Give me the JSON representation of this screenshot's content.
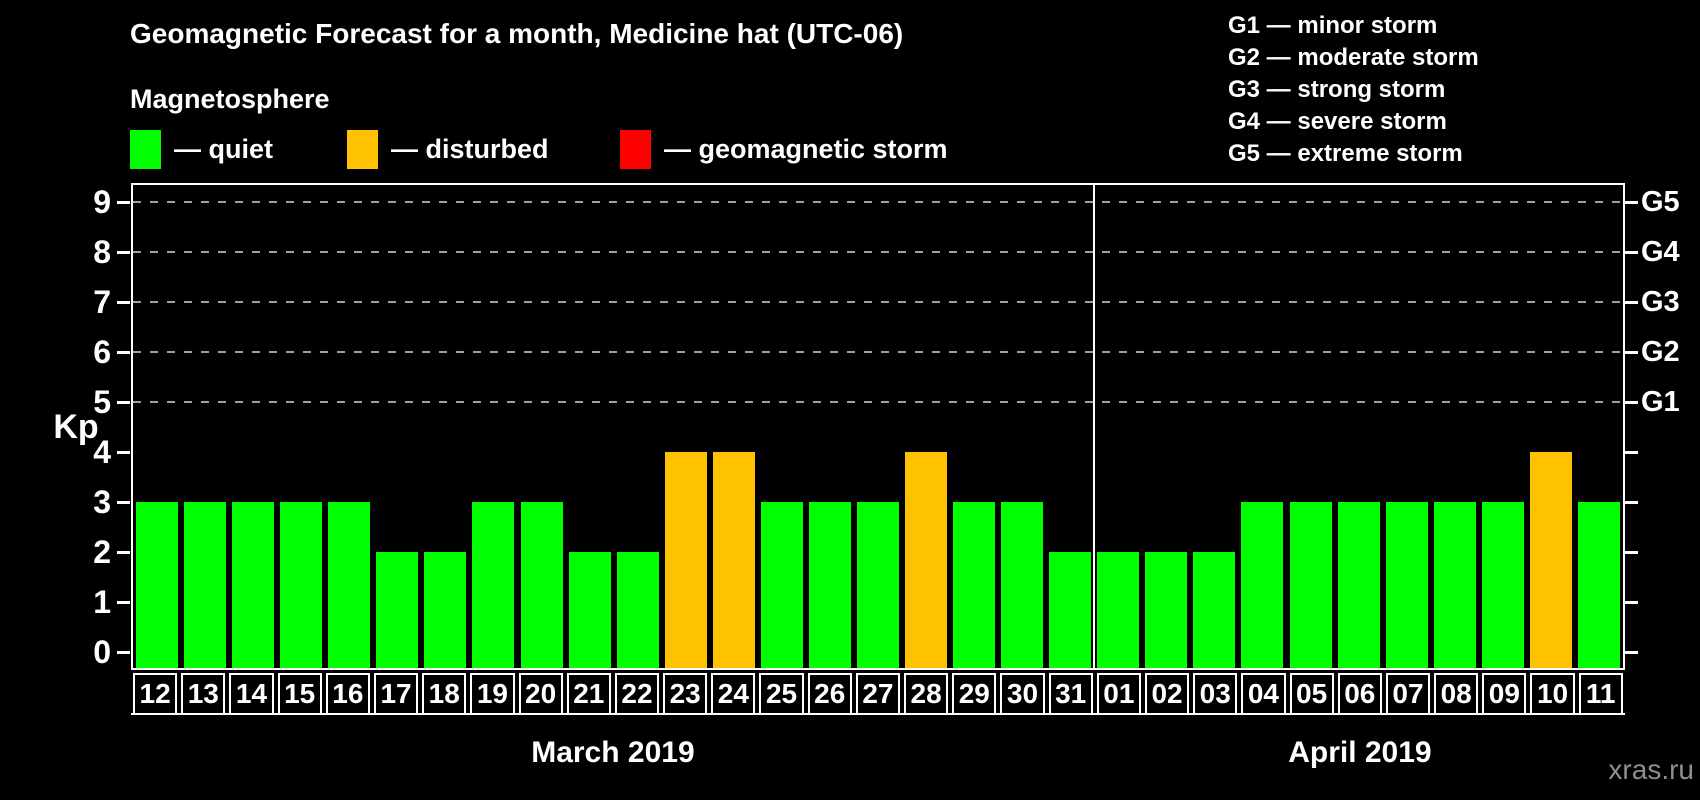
{
  "header": {
    "title": "Geomagnetic Forecast for a month, Medicine hat (UTC-06)",
    "subtitle": "Magnetosphere"
  },
  "legend": {
    "items": [
      {
        "label": "— quiet",
        "state": "quiet"
      },
      {
        "label": "— disturbed",
        "state": "disturbed"
      },
      {
        "label": "— geomagnetic storm",
        "state": "storm"
      }
    ]
  },
  "g_scale_legend": {
    "lines": [
      "G1 — minor storm",
      "G2 — moderate storm",
      "G3 — strong storm",
      "G4 — severe storm",
      "G5 — extreme storm"
    ]
  },
  "watermark": "xras.ru",
  "chart_data": {
    "type": "bar",
    "title": "Geomagnetic Forecast for a month, Medicine hat (UTC-06)",
    "ylabel": "Kp",
    "ylim": [
      0,
      9
    ],
    "yticks": [
      0,
      1,
      2,
      3,
      4,
      5,
      6,
      7,
      8,
      9
    ],
    "gridlines_at": [
      5,
      6,
      7,
      8,
      9
    ],
    "grid": "dashed horizontal lines at Kp 5 through 9",
    "legend_position": "top-left",
    "right_axis": [
      {
        "label": "G1",
        "kp": 5
      },
      {
        "label": "G2",
        "kp": 6
      },
      {
        "label": "G3",
        "kp": 7
      },
      {
        "label": "G4",
        "kp": 8
      },
      {
        "label": "G5",
        "kp": 9
      }
    ],
    "state_colors": {
      "quiet": "#00FF00",
      "disturbed": "#FFC200",
      "storm": "#FF0000"
    },
    "months": [
      {
        "label": "March 2019",
        "bar_count": 20
      },
      {
        "label": "April 2019",
        "bar_count": 11
      }
    ],
    "bars": [
      {
        "day": "12",
        "kp": 3,
        "state": "quiet"
      },
      {
        "day": "13",
        "kp": 3,
        "state": "quiet"
      },
      {
        "day": "14",
        "kp": 3,
        "state": "quiet"
      },
      {
        "day": "15",
        "kp": 3,
        "state": "quiet"
      },
      {
        "day": "16",
        "kp": 3,
        "state": "quiet"
      },
      {
        "day": "17",
        "kp": 2,
        "state": "quiet"
      },
      {
        "day": "18",
        "kp": 2,
        "state": "quiet"
      },
      {
        "day": "19",
        "kp": 3,
        "state": "quiet"
      },
      {
        "day": "20",
        "kp": 3,
        "state": "quiet"
      },
      {
        "day": "21",
        "kp": 2,
        "state": "quiet"
      },
      {
        "day": "22",
        "kp": 2,
        "state": "quiet"
      },
      {
        "day": "23",
        "kp": 4,
        "state": "disturbed"
      },
      {
        "day": "24",
        "kp": 4,
        "state": "disturbed"
      },
      {
        "day": "25",
        "kp": 3,
        "state": "quiet"
      },
      {
        "day": "26",
        "kp": 3,
        "state": "quiet"
      },
      {
        "day": "27",
        "kp": 3,
        "state": "quiet"
      },
      {
        "day": "28",
        "kp": 4,
        "state": "disturbed"
      },
      {
        "day": "29",
        "kp": 3,
        "state": "quiet"
      },
      {
        "day": "30",
        "kp": 3,
        "state": "quiet"
      },
      {
        "day": "31",
        "kp": 2,
        "state": "quiet"
      },
      {
        "day": "01",
        "kp": 2,
        "state": "quiet"
      },
      {
        "day": "02",
        "kp": 2,
        "state": "quiet"
      },
      {
        "day": "03",
        "kp": 2,
        "state": "quiet"
      },
      {
        "day": "04",
        "kp": 3,
        "state": "quiet"
      },
      {
        "day": "05",
        "kp": 3,
        "state": "quiet"
      },
      {
        "day": "06",
        "kp": 3,
        "state": "quiet"
      },
      {
        "day": "07",
        "kp": 3,
        "state": "quiet"
      },
      {
        "day": "08",
        "kp": 3,
        "state": "quiet"
      },
      {
        "day": "09",
        "kp": 3,
        "state": "quiet"
      },
      {
        "day": "10",
        "kp": 4,
        "state": "disturbed"
      },
      {
        "day": "11",
        "kp": 3,
        "state": "quiet"
      }
    ]
  }
}
